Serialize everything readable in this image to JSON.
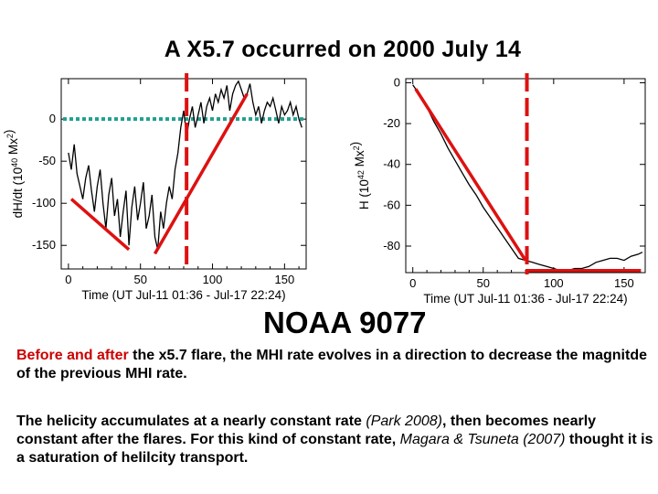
{
  "title": "A X5.7 occurred on 2000 July 14",
  "region_label": "NOAA 9077",
  "paragraph1": {
    "red_text": "Before and after",
    "rest": " the x5.7 flare, the MHI rate evolves in a direction to decrease the magnitde of the previous MHI rate."
  },
  "paragraph2": {
    "part1": "The helicity accumulates at a nearly constant rate ",
    "cite1": "(Park 2008)",
    "part2": ", then becomes nearly constant after the flares. For this kind of constant rate, ",
    "cite2": "Magara & Tsuneta (2007)",
    "part3": " thought it is a saturation of helilcity transport."
  },
  "colors": {
    "fit_line": "#dd1111",
    "flare_marker": "#dd1111",
    "zero_line": "#20a090",
    "curve": "#000000",
    "highlight_text": "#cc0000"
  },
  "chart_data": [
    {
      "type": "line",
      "title": "",
      "xlabel": "Time (UT Jul-11 01:36 - Jul-17 22:24)",
      "ylabel": "dH/dt (10^40 Mx^2)",
      "ylabel_main": "dH/dt (10",
      "ylabel_exp": "40",
      "ylabel_tail": " Mx",
      "ylabel_exp2": "2",
      "ylabel_close": ")",
      "xlim": [
        -5,
        165
      ],
      "ylim": [
        -178,
        48
      ],
      "xticks": [
        0,
        50,
        100,
        150
      ],
      "yticks": [
        0,
        -50,
        -100,
        -150
      ],
      "series": [
        {
          "name": "dH/dt",
          "x": [
            0,
            2,
            4,
            6,
            8,
            10,
            12,
            14,
            16,
            18,
            20,
            22,
            24,
            26,
            28,
            30,
            32,
            34,
            36,
            38,
            40,
            42,
            44,
            46,
            48,
            50,
            52,
            54,
            56,
            58,
            60,
            62,
            64,
            66,
            68,
            70,
            72,
            74,
            76,
            78,
            80,
            82,
            84,
            86,
            88,
            90,
            92,
            94,
            96,
            98,
            100,
            102,
            104,
            106,
            108,
            110,
            112,
            114,
            116,
            118,
            120,
            122,
            124,
            126,
            128,
            130,
            132,
            134,
            136,
            138,
            140,
            142,
            144,
            146,
            148,
            150,
            152,
            154,
            156,
            158,
            160,
            162
          ],
          "y": [
            -40,
            -60,
            -30,
            -65,
            -80,
            -95,
            -70,
            -55,
            -85,
            -110,
            -80,
            -60,
            -100,
            -130,
            -90,
            -70,
            -115,
            -95,
            -140,
            -110,
            -85,
            -150,
            -105,
            -80,
            -120,
            -100,
            -75,
            -130,
            -115,
            -90,
            -140,
            -155,
            -110,
            -130,
            -100,
            -80,
            -95,
            -60,
            -40,
            -10,
            10,
            -20,
            0,
            15,
            -10,
            5,
            20,
            -5,
            15,
            25,
            10,
            30,
            20,
            35,
            25,
            40,
            10,
            30,
            40,
            45,
            35,
            25,
            30,
            42,
            20,
            5,
            15,
            -5,
            10,
            20,
            15,
            25,
            10,
            -5,
            15,
            5,
            10,
            20,
            5,
            15,
            0,
            -10
          ]
        },
        {
          "name": "fit before flare",
          "x": [
            2,
            42
          ],
          "y": [
            -95,
            -155
          ]
        },
        {
          "name": "fit after flare",
          "x": [
            60,
            124
          ],
          "y": [
            -160,
            30
          ]
        }
      ],
      "reference_lines": {
        "y_zero": 0,
        "flare_x": 82
      }
    },
    {
      "type": "line",
      "title": "",
      "xlabel": "Time (UT Jul-11 01:36 - Jul-17 22:24)",
      "ylabel": "H (10^42 Mx^2)",
      "ylabel_main": "H (10",
      "ylabel_exp": "42",
      "ylabel_tail": " Mx",
      "ylabel_exp2": "2",
      "ylabel_close": ")",
      "xlim": [
        -5,
        165
      ],
      "ylim": [
        -93,
        2
      ],
      "xticks": [
        0,
        50,
        100,
        150
      ],
      "yticks": [
        0,
        -20,
        -40,
        -60,
        -80
      ],
      "series": [
        {
          "name": "H",
          "x": [
            0,
            5,
            10,
            15,
            20,
            25,
            30,
            35,
            40,
            45,
            50,
            55,
            60,
            65,
            70,
            75,
            80,
            85,
            90,
            95,
            100,
            105,
            110,
            115,
            120,
            125,
            130,
            135,
            140,
            145,
            150,
            155,
            160,
            163
          ],
          "y": [
            -1,
            -6,
            -12,
            -19,
            -25,
            -32,
            -38,
            -44,
            -50,
            -55,
            -61,
            -66,
            -71,
            -76,
            -81,
            -86,
            -87,
            -88,
            -89,
            -90,
            -91,
            -92,
            -92,
            -91,
            -91,
            -90,
            -88,
            -87,
            -86,
            -86,
            -87,
            -85,
            -84,
            -83
          ]
        },
        {
          "name": "fit before flare",
          "x": [
            2,
            80
          ],
          "y": [
            -3,
            -87
          ]
        },
        {
          "name": "fit after flare",
          "x": [
            80,
            162
          ],
          "y": [
            -92,
            -92
          ]
        }
      ],
      "reference_lines": {
        "flare_x": 81
      }
    }
  ]
}
